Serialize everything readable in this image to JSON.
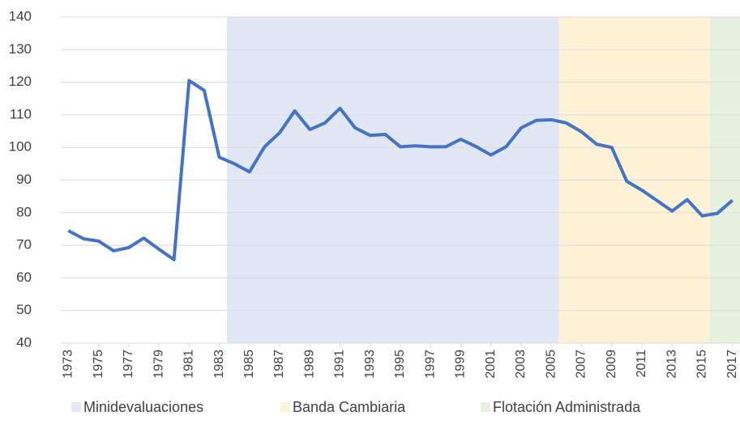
{
  "chart_data": {
    "type": "line",
    "x": [
      1973,
      1974,
      1975,
      1976,
      1977,
      1978,
      1979,
      1980,
      1981,
      1982,
      1983,
      1984,
      1985,
      1986,
      1987,
      1988,
      1989,
      1990,
      1991,
      1992,
      1993,
      1994,
      1995,
      1996,
      1997,
      1998,
      1999,
      2000,
      2001,
      2002,
      2003,
      2004,
      2005,
      2006,
      2007,
      2008,
      2009,
      2010,
      2011,
      2012,
      2013,
      2014,
      2015,
      2016,
      2017
    ],
    "series": [
      {
        "color": "#4472c4",
        "values": [
          74.5,
          72,
          71.3,
          68.3,
          69.3,
          72.2,
          68.8,
          65.6,
          120.5,
          117.5,
          97,
          95,
          92.5,
          100.2,
          104.5,
          111.2,
          105.5,
          107.5,
          112,
          106,
          103.7,
          104,
          100.2,
          100.5,
          100.2,
          100.2,
          102.5,
          100.3,
          97.7,
          100.2,
          106,
          108.3,
          108.5,
          107.5,
          104.8,
          101,
          100,
          89.6,
          86.9,
          83.7,
          80.5,
          84,
          79,
          79.8,
          83.8
        ]
      }
    ],
    "bands": [
      {
        "name": "Minidevaluaciones",
        "color": "#e2e7f5",
        "range": [
          1983.5,
          2005.5
        ]
      },
      {
        "name": "Banda Cambiaria",
        "color": "#fdf2d6",
        "range": [
          2005.5,
          2015.5
        ]
      },
      {
        "name": "Flotación Administrada",
        "color": "#e6f0de",
        "range": [
          2015.5,
          2017.5
        ]
      }
    ],
    "xlim": [
      1972.5,
      2017.5
    ],
    "xticks": [
      1973,
      1975,
      1977,
      1979,
      1981,
      1983,
      1985,
      1987,
      1989,
      1991,
      1993,
      1995,
      1997,
      1999,
      2001,
      2003,
      2005,
      2007,
      2009,
      2011,
      2013,
      2015,
      2017
    ],
    "ylim": [
      40,
      140
    ],
    "yticks": [
      40,
      50,
      60,
      70,
      80,
      90,
      100,
      110,
      120,
      130,
      140
    ],
    "grid": true,
    "legend": "bottom"
  }
}
